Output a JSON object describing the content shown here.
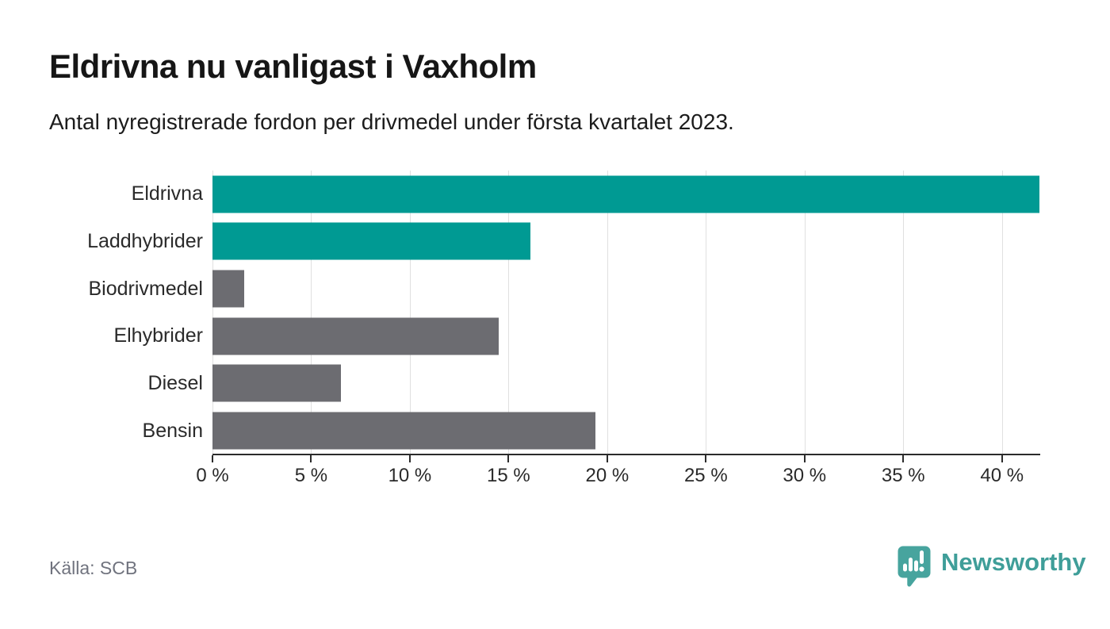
{
  "header": {
    "title": "Eldrivna nu vanligast i Vaxholm",
    "subtitle": "Antal nyregistrerade fordon per drivmedel under första kvartalet 2023."
  },
  "chart_data": {
    "type": "bar",
    "orientation": "horizontal",
    "title": "Eldrivna nu vanligast i Vaxholm",
    "subtitle": "Antal nyregistrerade fordon per drivmedel under första kvartalet 2023.",
    "categories": [
      "Eldrivna",
      "Laddhybrider",
      "Biodrivmedel",
      "Elhybrider",
      "Diesel",
      "Bensin"
    ],
    "values": [
      41.9,
      16.1,
      1.6,
      14.5,
      6.5,
      19.4
    ],
    "unit": "%",
    "xlim": [
      0,
      41.9
    ],
    "x_tick_values": [
      0,
      5,
      10,
      15,
      20,
      25,
      30,
      35,
      40
    ],
    "x_tick_labels": [
      "0 %",
      "5 %",
      "10 %",
      "15 %",
      "20 %",
      "25 %",
      "30 %",
      "35 %",
      "40 %"
    ],
    "grid": true,
    "legend": false,
    "bar_colors": [
      "#009a93",
      "#009a93",
      "#6c6c71",
      "#6c6c71",
      "#6c6c71",
      "#6c6c71"
    ]
  },
  "footer": {
    "source": "Källa: SCB",
    "brand": "Newsworthy"
  },
  "icons": {
    "logo_mark": "newsworthy-speech-bubble-chart-icon"
  },
  "colors": {
    "accent_teal": "#009a93",
    "neutral_gray": "#6c6c71",
    "brand_teal": "#3f9e99",
    "logo_mark_teal": "#47a49e",
    "grid_line": "#e0e0e0",
    "axis_line": "#2b2b2b",
    "text_dark": "#161616",
    "text_muted": "#70737e"
  }
}
